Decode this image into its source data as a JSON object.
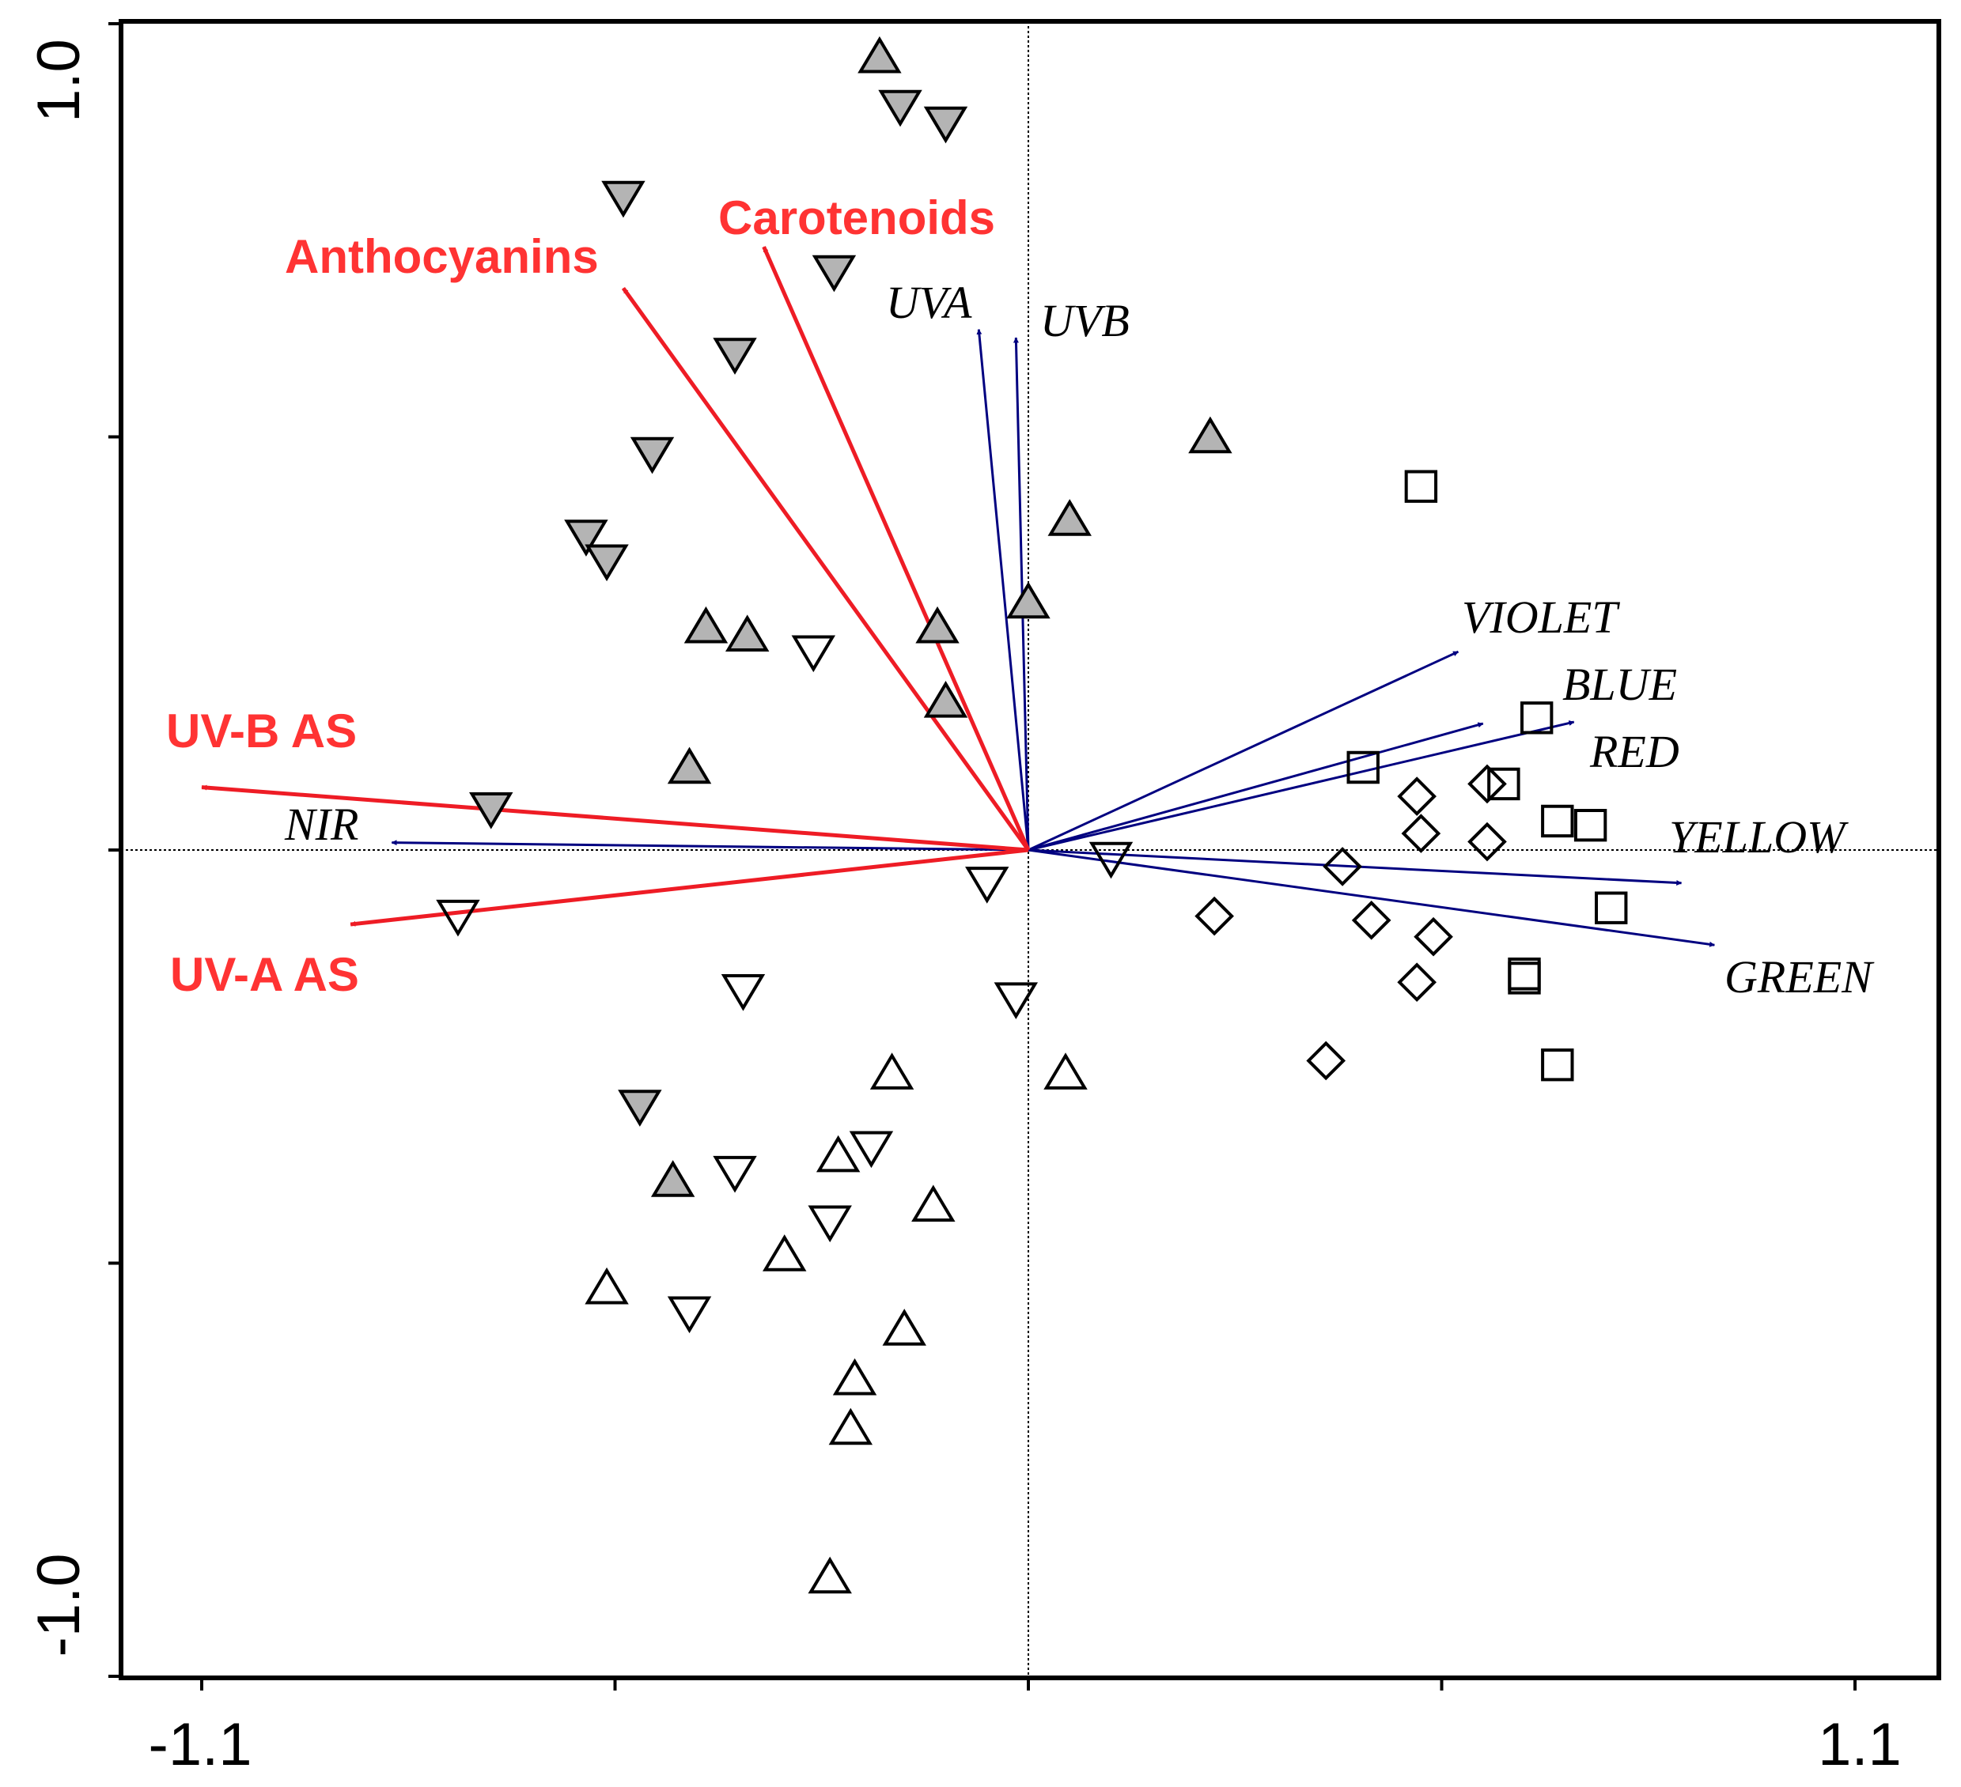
{
  "chart_data": {
    "type": "scatter",
    "title": "",
    "xlabel": "",
    "ylabel": "",
    "xlim": [
      -1.1,
      1.1
    ],
    "ylim": [
      -1.0,
      1.0
    ],
    "x_tick_labels": [
      "-1.1",
      "1.1"
    ],
    "y_tick_labels": [
      "1.0",
      "-1.0"
    ],
    "colors": {
      "red_arrow": "#ee1c25",
      "red_text": "#ff3333",
      "blue_arrow": "#000080",
      "gray_fill": "#b4b4b4"
    },
    "red_vectors": [
      {
        "label": "Anthocyanins",
        "x": -0.49,
        "y": 0.68
      },
      {
        "label": "Carotenoids",
        "x": -0.32,
        "y": 0.73
      },
      {
        "label": "UV-B AS",
        "x": -1.0,
        "y": 0.076
      },
      {
        "label": "UV-A AS",
        "x": -0.82,
        "y": -0.09
      }
    ],
    "blue_vectors": [
      {
        "label": "UVA",
        "x": -0.06,
        "y": 0.63
      },
      {
        "label": "UVB",
        "x": -0.015,
        "y": 0.62
      },
      {
        "label": "VIOLET",
        "x": 0.52,
        "y": 0.24
      },
      {
        "label": "BLUE",
        "x": 0.55,
        "y": 0.153
      },
      {
        "label": "RED",
        "x": 0.66,
        "y": 0.155
      },
      {
        "label": "YELLOW",
        "x": 0.79,
        "y": -0.04
      },
      {
        "label": "GREEN",
        "x": 0.83,
        "y": -0.115
      },
      {
        "label": "NIR",
        "x": -0.77,
        "y": 0.009
      }
    ],
    "series": [
      {
        "name": "gray up-triangles",
        "marker": "triangle-up",
        "fill": "gray",
        "points": [
          [
            -0.18,
            0.96
          ],
          [
            0.22,
            0.5
          ],
          [
            0.05,
            0.4
          ],
          [
            0.0,
            0.3
          ],
          [
            -0.11,
            0.27
          ],
          [
            -0.39,
            0.27
          ],
          [
            -0.34,
            0.26
          ],
          [
            -0.1,
            0.18
          ],
          [
            -0.41,
            0.1
          ],
          [
            -0.43,
            -0.4
          ]
        ]
      },
      {
        "name": "gray down-triangles",
        "marker": "triangle-down",
        "fill": "gray",
        "points": [
          [
            -0.155,
            0.9
          ],
          [
            -0.1,
            0.88
          ],
          [
            -0.49,
            0.79
          ],
          [
            -0.235,
            0.7
          ],
          [
            -0.355,
            0.6
          ],
          [
            -0.455,
            0.48
          ],
          [
            -0.535,
            0.38
          ],
          [
            -0.51,
            0.35
          ],
          [
            -0.65,
            0.05
          ],
          [
            -0.47,
            -0.31
          ]
        ]
      },
      {
        "name": "open up-triangles",
        "marker": "triangle-up",
        "fill": "none",
        "points": [
          [
            -0.165,
            -0.27
          ],
          [
            0.045,
            -0.27
          ],
          [
            -0.23,
            -0.37
          ],
          [
            -0.115,
            -0.43
          ],
          [
            -0.295,
            -0.49
          ],
          [
            -0.51,
            -0.53
          ],
          [
            -0.15,
            -0.58
          ],
          [
            -0.21,
            -0.64
          ],
          [
            -0.215,
            -0.7
          ],
          [
            -0.24,
            -0.88
          ]
        ]
      },
      {
        "name": "open down-triangles",
        "marker": "triangle-down",
        "fill": "none",
        "points": [
          [
            -0.26,
            0.24
          ],
          [
            0.1,
            -0.01
          ],
          [
            -0.05,
            -0.04
          ],
          [
            -0.69,
            -0.08
          ],
          [
            -0.345,
            -0.17
          ],
          [
            -0.015,
            -0.18
          ],
          [
            -0.19,
            -0.36
          ],
          [
            -0.355,
            -0.39
          ],
          [
            -0.24,
            -0.45
          ],
          [
            -0.41,
            -0.56
          ]
        ]
      },
      {
        "name": "open squares",
        "marker": "square",
        "fill": "none",
        "points": [
          [
            0.475,
            0.44
          ],
          [
            0.615,
            0.16
          ],
          [
            0.405,
            0.1
          ],
          [
            0.575,
            0.08
          ],
          [
            0.64,
            0.035
          ],
          [
            0.68,
            0.03
          ],
          [
            0.705,
            -0.07
          ],
          [
            0.6,
            -0.15
          ],
          [
            0.6,
            -0.155
          ],
          [
            0.64,
            -0.26
          ]
        ]
      },
      {
        "name": "open diamonds",
        "marker": "diamond",
        "fill": "none",
        "points": [
          [
            0.47,
            0.065
          ],
          [
            0.555,
            0.08
          ],
          [
            0.475,
            0.02
          ],
          [
            0.555,
            0.01
          ],
          [
            0.38,
            -0.02
          ],
          [
            0.225,
            -0.08
          ],
          [
            0.415,
            -0.085
          ],
          [
            0.49,
            -0.105
          ],
          [
            0.47,
            -0.16
          ],
          [
            0.36,
            -0.255
          ]
        ]
      }
    ]
  }
}
